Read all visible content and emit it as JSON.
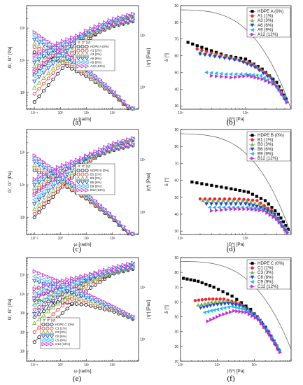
{
  "colors": {
    "HDPE": "#000000",
    "c1": "#e8262f",
    "c3": "#7cb342",
    "c6": "#1e3fd8",
    "c9": "#22b8e0",
    "c12": "#c026d3",
    "envelope": "#555555"
  },
  "panel_labels": [
    "(a)",
    "(b)",
    "(c)",
    "(d)",
    "(e)",
    "(f)"
  ],
  "chart_data": [
    {
      "panel": "(a)",
      "type": "line",
      "xlabel": "ω [rad/s]",
      "ylabel": "G', G'' [Pa]",
      "y2label": "|η*| [Pas]",
      "xscale": "log",
      "xlim": [
        0.05,
        1000
      ],
      "ylim": [
        300,
        500000
      ],
      "x_ticks": [
        "10⁻¹",
        "10⁰",
        "10¹",
        "10²"
      ],
      "y_ticks": [
        "10³",
        "10⁴",
        "10⁵"
      ],
      "y2_ticks": [
        "10³",
        "10⁴"
      ],
      "legend_header": [
        "G'",
        "G''",
        "|η*|"
      ],
      "series": [
        {
          "name": "HDPE A (0%)",
          "x": [
            0.1,
            1,
            10,
            100,
            600
          ],
          "Gp": [
            500,
            4800,
            40000,
            140000,
            230000
          ],
          "Gpp": [
            3500,
            17000,
            50000,
            110000,
            160000
          ]
        },
        {
          "name": "A1 (1%)",
          "x": [
            0.1,
            1,
            10,
            100,
            600
          ],
          "Gp": [
            900,
            7000,
            48000,
            150000,
            240000
          ],
          "Gpp": [
            5000,
            21000,
            57000,
            115000,
            165000
          ]
        },
        {
          "name": "A3 (3%)",
          "x": [
            0.1,
            1,
            10,
            100,
            600
          ],
          "Gp": [
            1400,
            9500,
            56000,
            160000,
            245000
          ],
          "Gpp": [
            6500,
            24000,
            61000,
            118000,
            168000
          ]
        },
        {
          "name": "A6 (6%)",
          "x": [
            0.1,
            1,
            10,
            100,
            600
          ],
          "Gp": [
            2200,
            13000,
            65000,
            170000,
            255000
          ],
          "Gpp": [
            8500,
            28000,
            66000,
            122000,
            172000
          ]
        },
        {
          "name": "A9 (9%)",
          "x": [
            0.1,
            1,
            10,
            100,
            600
          ],
          "Gp": [
            3200,
            17000,
            74000,
            180000,
            265000
          ],
          "Gpp": [
            11000,
            32000,
            70000,
            126000,
            176000
          ]
        },
        {
          "name": "A12 (12%)",
          "x": [
            0.1,
            1,
            10,
            100,
            600
          ],
          "Gp": [
            4500,
            22000,
            85000,
            190000,
            275000
          ],
          "Gpp": [
            14000,
            37000,
            75000,
            130000,
            180000
          ]
        }
      ]
    },
    {
      "panel": "(b)",
      "type": "scatter",
      "xlabel": "|G*| [Pa]",
      "ylabel": "δ [°]",
      "xscale": "log",
      "xlim": [
        10000,
        500000
      ],
      "ylim": [
        28,
        90
      ],
      "x_ticks": [
        "10⁴",
        "10⁵"
      ],
      "y_ticks": [
        "30",
        "40",
        "50",
        "60",
        "70",
        "80",
        "90"
      ],
      "series": [
        {
          "name": "HDPE A (0%)",
          "x": [
            13000,
            25000,
            50000,
            100000,
            180000,
            300000,
            420000
          ],
          "y": [
            68,
            64,
            60,
            58,
            52,
            44,
            34
          ]
        },
        {
          "name": "A1 (1%)",
          "x": [
            18000,
            35000,
            70000,
            130000,
            230000,
            400000
          ],
          "y": [
            64,
            61,
            58,
            55,
            48,
            35
          ]
        },
        {
          "name": "A3 (3%)",
          "x": [
            20000,
            40000,
            80000,
            140000,
            250000,
            400000
          ],
          "y": [
            62,
            60,
            58,
            54,
            47,
            35
          ]
        },
        {
          "name": "A6 (6%)",
          "x": [
            20000,
            40000,
            80000,
            140000,
            250000,
            400000
          ],
          "y": [
            61,
            59,
            57,
            53,
            46,
            34
          ]
        },
        {
          "name": "A9 (9%)",
          "x": [
            25000,
            50000,
            100000,
            170000,
            280000,
            420000
          ],
          "y": [
            50,
            49,
            49,
            48,
            43,
            33
          ]
        },
        {
          "name": "A12 (12%)",
          "x": [
            30000,
            60000,
            110000,
            180000,
            300000,
            430000
          ],
          "y": [
            48,
            47,
            48,
            46,
            42,
            32
          ]
        }
      ]
    },
    {
      "panel": "(c)",
      "type": "line",
      "xlabel": "ω [rad/s]",
      "ylabel": "G', G'' [Pa]",
      "y2label": "|η*| [Pas]",
      "xscale": "log",
      "xlim": [
        0.05,
        1000
      ],
      "ylim": [
        300,
        500000
      ],
      "x_ticks": [
        "10⁻¹",
        "10⁰",
        "10¹",
        "10²"
      ],
      "y_ticks": [
        "10³",
        "10⁴",
        "10⁵"
      ],
      "y2_ticks": [
        "10³",
        "10⁴"
      ],
      "legend_header": [
        "G'",
        "G''",
        "|η*|"
      ],
      "series": [
        {
          "name": "HDPE B (0%)",
          "x": [
            0.1,
            1,
            10,
            100,
            600
          ],
          "Gp": [
            1000,
            7500,
            45000,
            140000,
            230000
          ],
          "Gpp": [
            5500,
            22000,
            58000,
            112000,
            160000
          ]
        },
        {
          "name": "B1 (1%)",
          "x": [
            0.1,
            1,
            10,
            100,
            600
          ],
          "Gp": [
            1300,
            9000,
            50000,
            150000,
            235000
          ],
          "Gpp": [
            6500,
            24000,
            61000,
            115000,
            163000
          ]
        },
        {
          "name": "B3 (3%)",
          "x": [
            0.1,
            1,
            10,
            100,
            600
          ],
          "Gp": [
            1800,
            11000,
            57000,
            158000,
            242000
          ],
          "Gpp": [
            8000,
            27000,
            64000,
            118000,
            166000
          ]
        },
        {
          "name": "B6 (6%)",
          "x": [
            0.1,
            1,
            10,
            100,
            600
          ],
          "Gp": [
            2600,
            14000,
            64000,
            166000,
            250000
          ],
          "Gpp": [
            10000,
            30000,
            68000,
            121000,
            170000
          ]
        },
        {
          "name": "B9 (9%)",
          "x": [
            0.1,
            1,
            10,
            100,
            600
          ],
          "Gp": [
            3500,
            18000,
            72000,
            175000,
            258000
          ],
          "Gpp": [
            12500,
            34000,
            72000,
            125000,
            174000
          ]
        },
        {
          "name": "B12 (12%)",
          "x": [
            0.1,
            1,
            10,
            100,
            600
          ],
          "Gp": [
            4800,
            22000,
            80000,
            185000,
            268000
          ],
          "Gpp": [
            15000,
            38000,
            76000,
            129000,
            178000
          ]
        }
      ]
    },
    {
      "panel": "(d)",
      "type": "scatter",
      "xlabel": "|G*| [Pa]",
      "ylabel": "δ [°]",
      "xscale": "log",
      "xlim": [
        10000,
        500000
      ],
      "ylim": [
        28,
        90
      ],
      "x_ticks": [
        "10⁴",
        "10⁵"
      ],
      "y_ticks": [
        "30",
        "40",
        "50",
        "60",
        "70",
        "80",
        "90"
      ],
      "series": [
        {
          "name": "HDPE B (0%)",
          "x": [
            15000,
            30000,
            60000,
            110000,
            200000,
            320000,
            450000
          ],
          "y": [
            59,
            57,
            55,
            53,
            48,
            40,
            31
          ]
        },
        {
          "name": "B1 (1%)",
          "x": [
            20000,
            40000,
            80000,
            150000,
            250000,
            400000
          ],
          "y": [
            49,
            49,
            49,
            48,
            42,
            31
          ]
        },
        {
          "name": "B3 (3%)",
          "x": [
            22000,
            45000,
            90000,
            160000,
            260000,
            410000
          ],
          "y": [
            48,
            48,
            48,
            46,
            41,
            30
          ]
        },
        {
          "name": "B6 (6%)",
          "x": [
            25000,
            50000,
            100000,
            170000,
            280000,
            420000
          ],
          "y": [
            46,
            46,
            46,
            44,
            40,
            30
          ]
        },
        {
          "name": "B9 (9%)",
          "x": [
            28000,
            55000,
            105000,
            180000,
            290000,
            430000
          ],
          "y": [
            44,
            44,
            44,
            43,
            38,
            30
          ]
        },
        {
          "name": "B12 (12%)",
          "x": [
            30000,
            60000,
            110000,
            190000,
            300000,
            440000
          ],
          "y": [
            42,
            43,
            43,
            42,
            37,
            29
          ]
        }
      ]
    },
    {
      "panel": "(e)",
      "type": "line",
      "xlabel": "ω [rad/s]",
      "ylabel": "G', G'' [Pa]",
      "y2label": "|η*| [Pas]",
      "xscale": "log",
      "xlim": [
        0.05,
        1000
      ],
      "ylim": [
        3,
        800000
      ],
      "x_ticks": [
        "10⁻¹",
        "10⁰",
        "10¹",
        "10²"
      ],
      "y_ticks": [
        "10¹",
        "10²",
        "10³",
        "10⁴",
        "10⁵"
      ],
      "y2_ticks": [
        "10³",
        "10⁴"
      ],
      "legend_header": [
        "G'",
        "G''",
        "|η*|"
      ],
      "series": [
        {
          "name": "HDPE C (0%)",
          "x": [
            0.1,
            1,
            10,
            100,
            600
          ],
          "Gp": [
            30,
            800,
            15000,
            110000,
            300000
          ],
          "Gpp": [
            600,
            4500,
            30000,
            110000,
            200000
          ]
        },
        {
          "name": "C1 (1%)",
          "x": [
            0.1,
            1,
            10,
            100,
            600
          ],
          "Gp": [
            100,
            2000,
            25000,
            140000,
            330000
          ],
          "Gpp": [
            1500,
            9000,
            40000,
            125000,
            215000
          ]
        },
        {
          "name": "C3 (3%)",
          "x": [
            0.1,
            1,
            10,
            100,
            600
          ],
          "Gp": [
            300,
            4000,
            35000,
            160000,
            350000
          ],
          "Gpp": [
            3000,
            14000,
            50000,
            135000,
            225000
          ]
        },
        {
          "name": "C6 (6%)",
          "x": [
            0.1,
            1,
            10,
            100,
            600
          ],
          "Gp": [
            900,
            8000,
            50000,
            185000,
            370000
          ],
          "Gpp": [
            6000,
            22000,
            62000,
            145000,
            235000
          ]
        },
        {
          "name": "C9 (9%)",
          "x": [
            0.1,
            1,
            10,
            100,
            600
          ],
          "Gp": [
            2500,
            15000,
            70000,
            210000,
            390000
          ],
          "Gpp": [
            10000,
            32000,
            75000,
            155000,
            245000
          ]
        },
        {
          "name": "C12 (12%)",
          "x": [
            0.1,
            1,
            10,
            100,
            600
          ],
          "Gp": [
            6000,
            28000,
            95000,
            240000,
            420000
          ],
          "Gpp": [
            18000,
            48000,
            95000,
            170000,
            260000
          ]
        }
      ]
    },
    {
      "panel": "(f)",
      "type": "scatter",
      "xlabel": "|G*| [Pa]",
      "ylabel": "δ [°]",
      "xscale": "log",
      "xlim": [
        1000,
        1000000
      ],
      "ylim": [
        20,
        90
      ],
      "x_ticks": [
        "10³",
        "10⁴",
        "10⁵"
      ],
      "y_ticks": [
        "20",
        "30",
        "40",
        "50",
        "60",
        "70",
        "80",
        "90"
      ],
      "series": [
        {
          "name": "HDPE C (0%)",
          "x": [
            1200,
            3000,
            8000,
            25000,
            80000,
            200000,
            450000
          ],
          "y": [
            76,
            74,
            70,
            64,
            55,
            43,
            28
          ]
        },
        {
          "name": "C1 (1%)",
          "x": [
            2500,
            6000,
            15000,
            40000,
            100000,
            220000,
            460000
          ],
          "y": [
            61,
            62,
            62,
            59,
            52,
            41,
            28
          ]
        },
        {
          "name": "C3 (3%)",
          "x": [
            3000,
            7000,
            18000,
            45000,
            110000,
            230000,
            470000
          ],
          "y": [
            58,
            60,
            61,
            58,
            51,
            40,
            28
          ]
        },
        {
          "name": "C6 (6%)",
          "x": [
            3500,
            8000,
            20000,
            50000,
            120000,
            240000,
            480000
          ],
          "y": [
            56,
            58,
            59,
            57,
            50,
            40,
            27
          ]
        },
        {
          "name": "C9 (9%)",
          "x": [
            4500,
            10000,
            25000,
            55000,
            125000,
            250000,
            490000
          ],
          "y": [
            53,
            55,
            57,
            55,
            49,
            39,
            27
          ]
        },
        {
          "name": "C12 (12%)",
          "x": [
            5500,
            12000,
            28000,
            60000,
            130000,
            260000,
            500000
          ],
          "y": [
            47,
            51,
            54,
            53,
            48,
            38,
            26
          ]
        }
      ]
    }
  ]
}
